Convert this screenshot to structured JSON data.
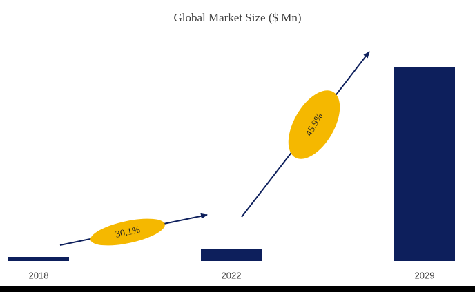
{
  "chart_data": {
    "type": "bar",
    "title": "Global Market Size ($ Mn)",
    "categories": [
      "2018",
      "2022",
      "2029"
    ],
    "values": [
      6,
      18,
      281
    ],
    "color": "#0d1f5c",
    "annotation_color": "#f5b800",
    "annotations": [
      "30.1%",
      "45.9%"
    ]
  }
}
